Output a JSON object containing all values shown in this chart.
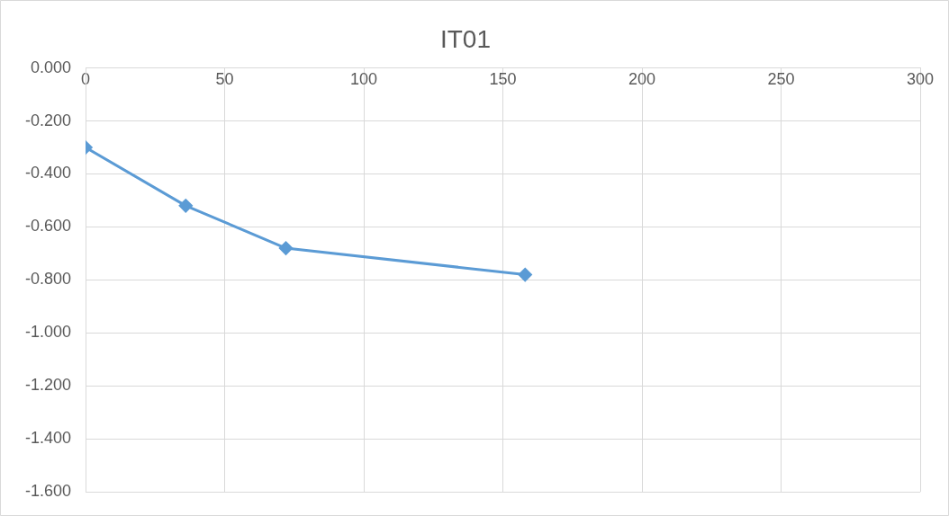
{
  "chart_data": {
    "type": "line",
    "title": "IT01",
    "x": [
      0,
      36,
      72,
      158
    ],
    "series": [
      {
        "color": "#5b9bd5",
        "values": [
          -0.3,
          -0.52,
          -0.68,
          -0.78
        ]
      }
    ],
    "xlim": [
      0,
      300
    ],
    "xticks": [
      0,
      50,
      100,
      150,
      200,
      250,
      300
    ],
    "ylim": [
      -1.6,
      0
    ],
    "yticks": [
      {
        "value": 0,
        "label": "0.000"
      },
      {
        "value": -0.2,
        "label": "-0.200"
      },
      {
        "value": -0.4,
        "label": "-0.400"
      },
      {
        "value": -0.6,
        "label": "-0.600"
      },
      {
        "value": -0.8,
        "label": "-0.800"
      },
      {
        "value": -1,
        "label": "-1.000"
      },
      {
        "value": -1.2,
        "label": "-1.200"
      },
      {
        "value": -1.4,
        "label": "-1.400"
      },
      {
        "value": -1.6,
        "label": "-1.600"
      }
    ],
    "grid": true,
    "marker": "diamond",
    "line_style": "solid"
  }
}
